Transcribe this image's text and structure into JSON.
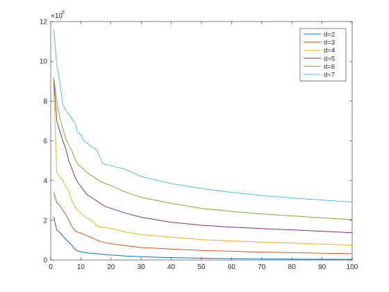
{
  "chart_data": {
    "type": "line",
    "title": "",
    "xlabel": "",
    "ylabel": "",
    "xlim": [
      0,
      100
    ],
    "ylim": [
      0,
      1200000
    ],
    "x_ticks": [
      0,
      10,
      20,
      30,
      40,
      50,
      60,
      70,
      80,
      90,
      100
    ],
    "y_ticks": [
      0,
      200000,
      400000,
      600000,
      800000,
      1000000,
      1200000
    ],
    "y_tick_labels": [
      "0",
      "2",
      "4",
      "6",
      "8",
      "10",
      "12"
    ],
    "y_exponent_base": "×10",
    "y_exponent_power": "5",
    "grid": false,
    "legend_position": "top-right",
    "series": [
      {
        "name": "d=2",
        "color": "#0072BD",
        "points": [
          [
            1,
            218000
          ],
          [
            2,
            150000
          ],
          [
            3,
            140000
          ],
          [
            4,
            120000
          ],
          [
            5,
            105000
          ],
          [
            6,
            90000
          ],
          [
            7,
            75000
          ],
          [
            8,
            55000
          ],
          [
            9,
            45000
          ],
          [
            10,
            42000
          ],
          [
            12,
            36000
          ],
          [
            15,
            32000
          ],
          [
            18,
            28000
          ],
          [
            20,
            25000
          ],
          [
            25,
            20000
          ],
          [
            30,
            17000
          ],
          [
            35,
            14000
          ],
          [
            40,
            12000
          ],
          [
            50,
            9000
          ],
          [
            60,
            7000
          ],
          [
            70,
            5500
          ],
          [
            80,
            4500
          ],
          [
            90,
            3500
          ],
          [
            100,
            3000
          ]
        ]
      },
      {
        "name": "d=3",
        "color": "#D95319",
        "points": [
          [
            1,
            340000
          ],
          [
            2,
            290000
          ],
          [
            3,
            275000
          ],
          [
            4,
            250000
          ],
          [
            5,
            230000
          ],
          [
            6,
            200000
          ],
          [
            7,
            170000
          ],
          [
            8,
            148000
          ],
          [
            9,
            140000
          ],
          [
            10,
            135000
          ],
          [
            12,
            122000
          ],
          [
            14,
            110000
          ],
          [
            16,
            95000
          ],
          [
            18,
            88000
          ],
          [
            20,
            82000
          ],
          [
            25,
            72000
          ],
          [
            30,
            63000
          ],
          [
            40,
            55000
          ],
          [
            50,
            48000
          ],
          [
            60,
            44000
          ],
          [
            70,
            40000
          ],
          [
            80,
            37000
          ],
          [
            90,
            34000
          ],
          [
            100,
            32000
          ]
        ]
      },
      {
        "name": "d=4",
        "color": "#EDB120",
        "points": [
          [
            1,
            880000
          ],
          [
            2,
            440000
          ],
          [
            3,
            420000
          ],
          [
            4,
            400000
          ],
          [
            5,
            370000
          ],
          [
            6,
            345000
          ],
          [
            7,
            300000
          ],
          [
            8,
            270000
          ],
          [
            9,
            250000
          ],
          [
            10,
            235000
          ],
          [
            12,
            210000
          ],
          [
            14,
            195000
          ],
          [
            15,
            175000
          ],
          [
            16,
            168000
          ],
          [
            20,
            158000
          ],
          [
            25,
            140000
          ],
          [
            30,
            128000
          ],
          [
            40,
            115000
          ],
          [
            50,
            103000
          ],
          [
            60,
            96000
          ],
          [
            70,
            90000
          ],
          [
            80,
            85000
          ],
          [
            90,
            80000
          ],
          [
            100,
            75000
          ]
        ]
      },
      {
        "name": "d=5",
        "color": "#7E2F8E",
        "points": [
          [
            1,
            910000
          ],
          [
            2,
            700000
          ],
          [
            3,
            650000
          ],
          [
            4,
            600000
          ],
          [
            5,
            560000
          ],
          [
            6,
            500000
          ],
          [
            7,
            460000
          ],
          [
            8,
            420000
          ],
          [
            9,
            390000
          ],
          [
            10,
            370000
          ],
          [
            12,
            330000
          ],
          [
            14,
            310000
          ],
          [
            16,
            290000
          ],
          [
            18,
            270000
          ],
          [
            20,
            260000
          ],
          [
            25,
            235000
          ],
          [
            30,
            215000
          ],
          [
            40,
            190000
          ],
          [
            50,
            175000
          ],
          [
            60,
            165000
          ],
          [
            70,
            158000
          ],
          [
            80,
            152000
          ],
          [
            90,
            145000
          ],
          [
            100,
            137000
          ]
        ]
      },
      {
        "name": "d=6",
        "color": "#77AC30",
        "points": [
          [
            1,
            920000
          ],
          [
            2,
            800000
          ],
          [
            3,
            720000
          ],
          [
            4,
            660000
          ],
          [
            5,
            610000
          ],
          [
            6,
            580000
          ],
          [
            7,
            550000
          ],
          [
            8,
            510000
          ],
          [
            9,
            480000
          ],
          [
            10,
            470000
          ],
          [
            12,
            440000
          ],
          [
            14,
            420000
          ],
          [
            16,
            400000
          ],
          [
            18,
            385000
          ],
          [
            20,
            375000
          ],
          [
            25,
            340000
          ],
          [
            30,
            315000
          ],
          [
            40,
            285000
          ],
          [
            50,
            260000
          ],
          [
            60,
            245000
          ],
          [
            70,
            232000
          ],
          [
            80,
            222000
          ],
          [
            90,
            212000
          ],
          [
            100,
            203000
          ]
        ]
      },
      {
        "name": "d=7",
        "color": "#4DBEEE",
        "points": [
          [
            1,
            1160000
          ],
          [
            2,
            980000
          ],
          [
            3,
            900000
          ],
          [
            4,
            780000
          ],
          [
            5,
            755000
          ],
          [
            6,
            735000
          ],
          [
            7,
            710000
          ],
          [
            8,
            690000
          ],
          [
            9,
            640000
          ],
          [
            10,
            630000
          ],
          [
            11,
            600000
          ],
          [
            12,
            590000
          ],
          [
            14,
            565000
          ],
          [
            15,
            560000
          ],
          [
            16,
            530000
          ],
          [
            17,
            490000
          ],
          [
            18,
            480000
          ],
          [
            20,
            475000
          ],
          [
            25,
            455000
          ],
          [
            30,
            420000
          ],
          [
            40,
            385000
          ],
          [
            50,
            360000
          ],
          [
            60,
            340000
          ],
          [
            70,
            325000
          ],
          [
            80,
            312000
          ],
          [
            90,
            302000
          ],
          [
            100,
            292000
          ]
        ]
      }
    ]
  }
}
